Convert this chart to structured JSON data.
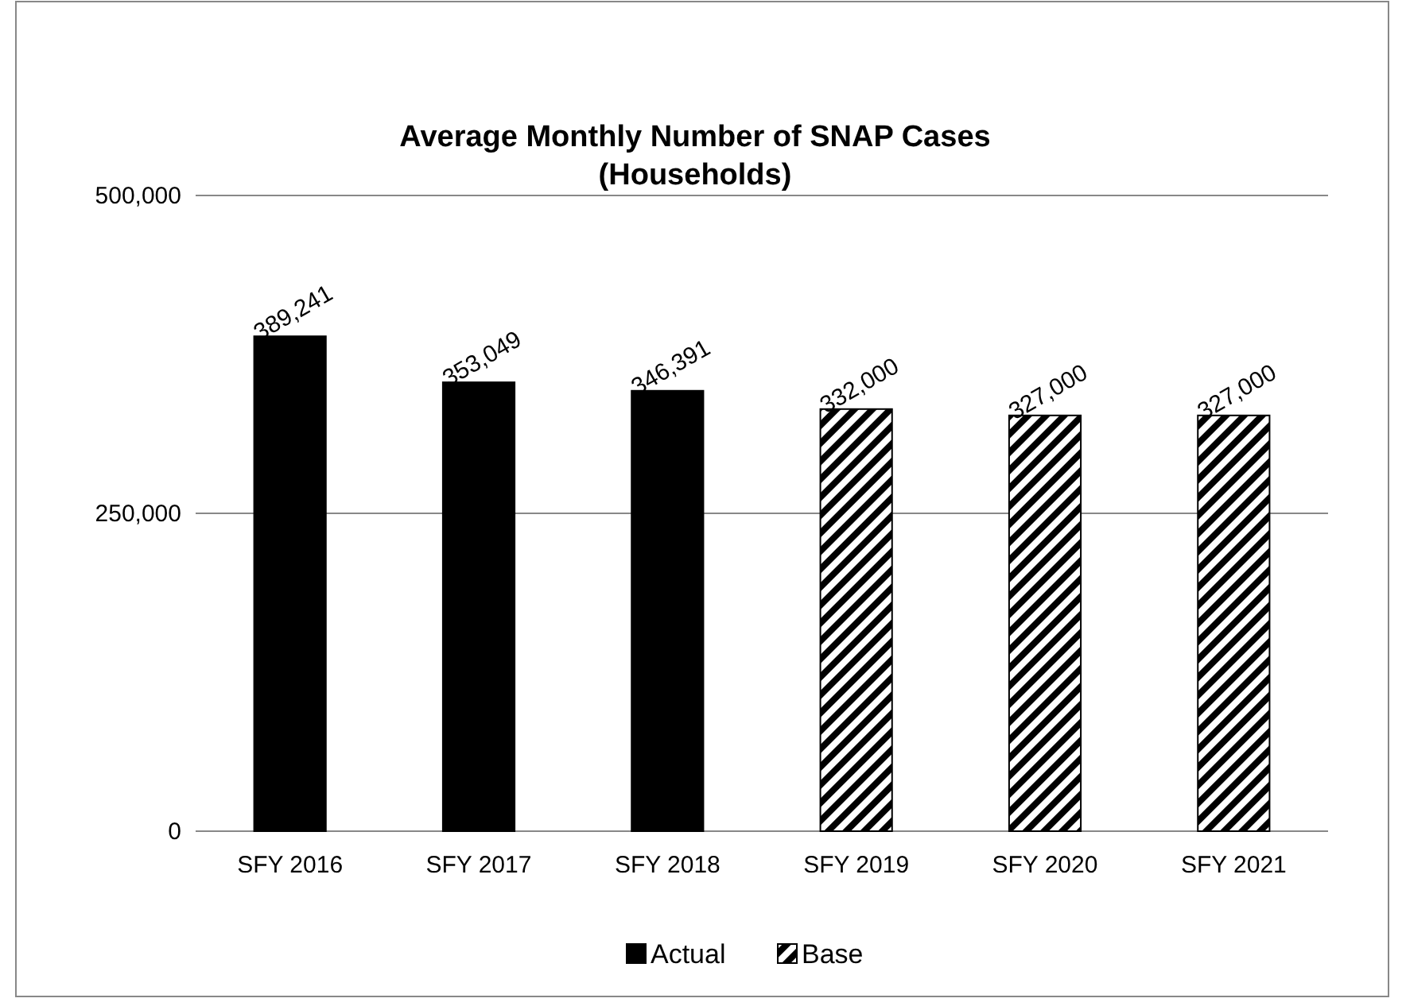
{
  "chart_data": {
    "type": "bar",
    "title": "Average Monthly Number of SNAP Cases\n(Households)",
    "categories": [
      "SFY 2016",
      "SFY 2017",
      "SFY 2018",
      "SFY 2019",
      "SFY 2020",
      "SFY 2021"
    ],
    "series": [
      {
        "name": "Actual",
        "color": "#000000",
        "values": [
          389241,
          353049,
          346391,
          null,
          null,
          null
        ],
        "value_labels": [
          "389,241",
          "353,049",
          "346,391",
          null,
          null,
          null
        ]
      },
      {
        "name": "Base",
        "color": "#000000",
        "values": [
          null,
          null,
          null,
          332000,
          327000,
          327000
        ],
        "value_labels": [
          null,
          null,
          null,
          "332,000",
          "327,000",
          "327,000"
        ]
      }
    ],
    "ylim": [
      0,
      500000
    ],
    "yticks": [
      {
        "value": 0,
        "label": "0"
      },
      {
        "value": 250000,
        "label": "250,000"
      },
      {
        "value": 500000,
        "label": "500,000"
      }
    ],
    "grid": "y",
    "legend": "bottom"
  }
}
